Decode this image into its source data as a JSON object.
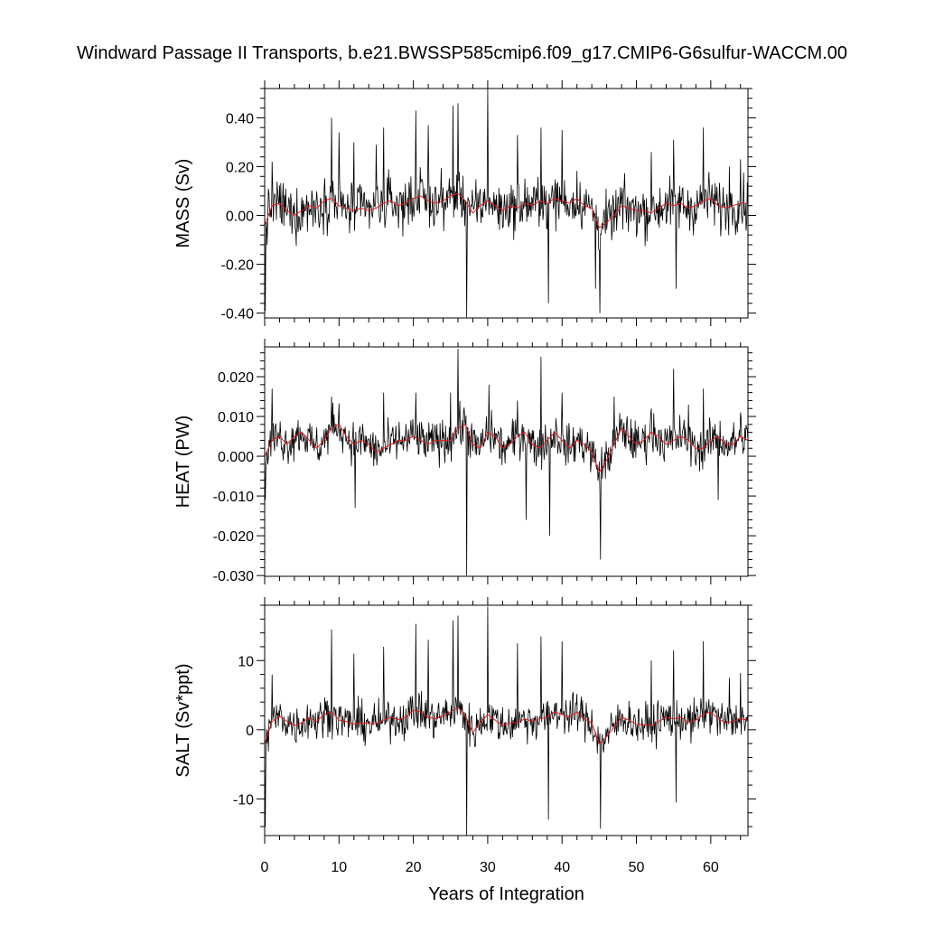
{
  "title": "Windward Passage II Transports, b.e21.BWSSP585cmip6.f09_g17.CMIP6-G6sulfur-WACCM.00",
  "xlabel": "Years of Integration",
  "colors": {
    "raw": "#000000",
    "smooth": "#e41a1c",
    "background": "#ffffff"
  },
  "chart_data": [
    {
      "type": "line",
      "ylabel": "MASS (Sv)",
      "ytick_labels": [
        "-0.40",
        "-0.20",
        "0.00",
        "0.20",
        "0.40"
      ],
      "ytick_values": [
        -0.4,
        -0.2,
        0.0,
        0.2,
        0.4
      ],
      "ylim": [
        -0.42,
        0.52
      ],
      "xlim": [
        0,
        65
      ],
      "amp": 0.075,
      "smooth": [
        [
          0,
          -0.04
        ],
        [
          1,
          0.04
        ],
        [
          2,
          0.05
        ],
        [
          3,
          0.02
        ],
        [
          4,
          0.0
        ],
        [
          5,
          0.02
        ],
        [
          6,
          0.04
        ],
        [
          7,
          0.03
        ],
        [
          8,
          0.06
        ],
        [
          9,
          0.07
        ],
        [
          10,
          0.04
        ],
        [
          11,
          0.03
        ],
        [
          12,
          0.02
        ],
        [
          13,
          0.03
        ],
        [
          14,
          0.02
        ],
        [
          15,
          0.03
        ],
        [
          16,
          0.05
        ],
        [
          17,
          0.06
        ],
        [
          18,
          0.04
        ],
        [
          19,
          0.05
        ],
        [
          20,
          0.07
        ],
        [
          21,
          0.08
        ],
        [
          22,
          0.06
        ],
        [
          23,
          0.05
        ],
        [
          24,
          0.06
        ],
        [
          25,
          0.08
        ],
        [
          26,
          0.09
        ],
        [
          27,
          0.06
        ],
        [
          28,
          0.01
        ],
        [
          29,
          0.04
        ],
        [
          30,
          0.06
        ],
        [
          31,
          0.04
        ],
        [
          32,
          0.02
        ],
        [
          33,
          0.04
        ],
        [
          34,
          0.03
        ],
        [
          35,
          0.05
        ],
        [
          36,
          0.04
        ],
        [
          37,
          0.06
        ],
        [
          38,
          0.05
        ],
        [
          39,
          0.07
        ],
        [
          40,
          0.06
        ],
        [
          41,
          0.05
        ],
        [
          42,
          0.07
        ],
        [
          43,
          0.04
        ],
        [
          44,
          0.03
        ],
        [
          45,
          -0.05
        ],
        [
          46,
          -0.03
        ],
        [
          47,
          0.0
        ],
        [
          48,
          0.04
        ],
        [
          49,
          0.03
        ],
        [
          50,
          0.02
        ],
        [
          51,
          0.02
        ],
        [
          52,
          0.01
        ],
        [
          53,
          0.03
        ],
        [
          54,
          0.05
        ],
        [
          55,
          0.04
        ],
        [
          56,
          0.05
        ],
        [
          57,
          0.03
        ],
        [
          58,
          0.04
        ],
        [
          59,
          0.06
        ],
        [
          60,
          0.07
        ],
        [
          61,
          0.04
        ],
        [
          62,
          0.03
        ],
        [
          63,
          0.04
        ],
        [
          64,
          0.05
        ],
        [
          65,
          0.05
        ]
      ],
      "spikes": [
        [
          0.05,
          -0.39
        ],
        [
          1.0,
          0.22
        ],
        [
          9.0,
          0.4
        ],
        [
          10.0,
          0.34
        ],
        [
          12.0,
          0.3
        ],
        [
          15.0,
          0.29
        ],
        [
          16.0,
          0.36
        ],
        [
          20.3,
          0.43
        ],
        [
          22.0,
          0.37
        ],
        [
          25.3,
          0.45
        ],
        [
          26.0,
          0.46
        ],
        [
          27.2,
          -0.42
        ],
        [
          30.0,
          0.52
        ],
        [
          34.0,
          0.33
        ],
        [
          37.2,
          0.36
        ],
        [
          38.2,
          -0.36
        ],
        [
          40.0,
          0.35
        ],
        [
          44.5,
          -0.3
        ],
        [
          45.1,
          -0.4
        ],
        [
          52.0,
          0.26
        ],
        [
          55.0,
          0.31
        ],
        [
          55.3,
          -0.3
        ],
        [
          59.0,
          0.36
        ],
        [
          62.5,
          0.2
        ],
        [
          64.0,
          0.23
        ]
      ]
    },
    {
      "type": "line",
      "ylabel": "HEAT (PW)",
      "ytick_labels": [
        "-0.030",
        "-0.020",
        "-0.010",
        "0.000",
        "0.010",
        "0.020"
      ],
      "ytick_values": [
        -0.03,
        -0.02,
        -0.01,
        0.0,
        0.01,
        0.02
      ],
      "ylim": [
        -0.0302,
        0.0275
      ],
      "xlim": [
        0,
        65
      ],
      "amp": 0.0038,
      "smooth": [
        [
          0,
          0.0
        ],
        [
          1,
          0.004
        ],
        [
          2,
          0.005
        ],
        [
          3,
          0.003
        ],
        [
          4,
          0.005
        ],
        [
          5,
          0.006
        ],
        [
          6,
          0.004
        ],
        [
          7,
          0.002
        ],
        [
          8,
          0.004
        ],
        [
          9,
          0.007
        ],
        [
          10,
          0.008
        ],
        [
          11,
          0.005
        ],
        [
          12,
          0.003
        ],
        [
          13,
          0.004
        ],
        [
          14,
          0.003
        ],
        [
          15,
          0.001
        ],
        [
          16,
          0.002
        ],
        [
          17,
          0.003
        ],
        [
          18,
          0.004
        ],
        [
          19,
          0.004
        ],
        [
          20,
          0.005
        ],
        [
          21,
          0.004
        ],
        [
          22,
          0.003
        ],
        [
          23,
          0.004
        ],
        [
          24,
          0.004
        ],
        [
          25,
          0.004
        ],
        [
          26,
          0.007
        ],
        [
          27,
          0.008
        ],
        [
          28,
          0.003
        ],
        [
          29,
          0.002
        ],
        [
          30,
          0.006
        ],
        [
          31,
          0.005
        ],
        [
          32,
          0.002
        ],
        [
          33,
          0.003
        ],
        [
          34,
          0.005
        ],
        [
          35,
          0.006
        ],
        [
          36,
          0.003
        ],
        [
          37,
          0.002
        ],
        [
          38,
          0.004
        ],
        [
          39,
          0.006
        ],
        [
          40,
          0.004
        ],
        [
          41,
          0.002
        ],
        [
          42,
          0.004
        ],
        [
          43,
          0.003
        ],
        [
          44,
          0.001
        ],
        [
          45,
          -0.004
        ],
        [
          46,
          -0.001
        ],
        [
          47,
          0.003
        ],
        [
          48,
          0.007
        ],
        [
          49,
          0.005
        ],
        [
          50,
          0.003
        ],
        [
          51,
          0.004
        ],
        [
          52,
          0.006
        ],
        [
          53,
          0.005
        ],
        [
          54,
          0.003
        ],
        [
          55,
          0.004
        ],
        [
          56,
          0.005
        ],
        [
          57,
          0.004
        ],
        [
          58,
          0.002
        ],
        [
          59,
          0.002
        ],
        [
          60,
          0.004
        ],
        [
          61,
          0.005
        ],
        [
          62,
          0.003
        ],
        [
          63,
          0.003
        ],
        [
          64,
          0.005
        ],
        [
          65,
          0.004
        ]
      ],
      "spikes": [
        [
          0.05,
          -0.011
        ],
        [
          1.0,
          0.017
        ],
        [
          9.0,
          0.015
        ],
        [
          12.2,
          -0.013
        ],
        [
          16.0,
          0.016
        ],
        [
          20.3,
          0.016
        ],
        [
          25.0,
          0.016
        ],
        [
          26.0,
          0.027
        ],
        [
          27.2,
          -0.03
        ],
        [
          30.2,
          0.018
        ],
        [
          34.0,
          0.014
        ],
        [
          35.2,
          -0.016
        ],
        [
          37.2,
          0.025
        ],
        [
          38.3,
          -0.02
        ],
        [
          40.0,
          0.016
        ],
        [
          45.2,
          -0.026
        ],
        [
          47.0,
          0.015
        ],
        [
          52.0,
          0.012
        ],
        [
          55.0,
          0.022
        ],
        [
          57.0,
          0.013
        ],
        [
          59.0,
          0.017
        ],
        [
          61.0,
          -0.011
        ],
        [
          64.0,
          0.011
        ]
      ]
    },
    {
      "type": "line",
      "ylabel": "SALT (Sv*ppt)",
      "ytick_labels": [
        "-10",
        "0",
        "10"
      ],
      "ytick_values": [
        -10,
        0,
        10
      ],
      "ylim": [
        -15.3,
        18.0
      ],
      "xlim": [
        0,
        65
      ],
      "amp": 2.1,
      "smooth": [
        [
          0,
          -2.0
        ],
        [
          1,
          1.2
        ],
        [
          2,
          2.0
        ],
        [
          3,
          1.2
        ],
        [
          4,
          0.6
        ],
        [
          5,
          1.0
        ],
        [
          6,
          1.8
        ],
        [
          7,
          1.2
        ],
        [
          8,
          2.2
        ],
        [
          9,
          2.6
        ],
        [
          10,
          1.4
        ],
        [
          11,
          1.2
        ],
        [
          12,
          0.8
        ],
        [
          13,
          1.0
        ],
        [
          14,
          0.9
        ],
        [
          15,
          0.9
        ],
        [
          16,
          1.4
        ],
        [
          17,
          1.8
        ],
        [
          18,
          1.5
        ],
        [
          19,
          1.8
        ],
        [
          20,
          2.8
        ],
        [
          21,
          2.6
        ],
        [
          22,
          1.8
        ],
        [
          23,
          1.6
        ],
        [
          24,
          2.0
        ],
        [
          25,
          2.6
        ],
        [
          26,
          3.2
        ],
        [
          27,
          2.0
        ],
        [
          28,
          -0.4
        ],
        [
          29,
          1.0
        ],
        [
          30,
          2.2
        ],
        [
          31,
          1.4
        ],
        [
          32,
          0.6
        ],
        [
          33,
          1.0
        ],
        [
          34,
          1.0
        ],
        [
          35,
          1.6
        ],
        [
          36,
          1.2
        ],
        [
          37,
          1.6
        ],
        [
          38,
          1.8
        ],
        [
          39,
          2.6
        ],
        [
          40,
          2.2
        ],
        [
          41,
          1.8
        ],
        [
          42,
          2.6
        ],
        [
          43,
          1.6
        ],
        [
          44,
          1.0
        ],
        [
          45,
          -2.0
        ],
        [
          46,
          -1.0
        ],
        [
          47,
          0.4
        ],
        [
          48,
          1.8
        ],
        [
          49,
          1.4
        ],
        [
          50,
          0.8
        ],
        [
          51,
          0.7
        ],
        [
          52,
          0.6
        ],
        [
          53,
          1.2
        ],
        [
          54,
          1.8
        ],
        [
          55,
          1.6
        ],
        [
          56,
          1.8
        ],
        [
          57,
          1.0
        ],
        [
          58,
          1.4
        ],
        [
          59,
          2.2
        ],
        [
          60,
          2.6
        ],
        [
          61,
          1.6
        ],
        [
          62,
          1.0
        ],
        [
          63,
          1.2
        ],
        [
          64,
          1.6
        ],
        [
          65,
          1.4
        ]
      ],
      "spikes": [
        [
          0.05,
          -14.0
        ],
        [
          1.0,
          8.0
        ],
        [
          9.0,
          14.5
        ],
        [
          12.0,
          11.0
        ],
        [
          16.0,
          12.0
        ],
        [
          20.3,
          15.3
        ],
        [
          22.0,
          13.0
        ],
        [
          25.3,
          15.8
        ],
        [
          26.0,
          16.5
        ],
        [
          27.2,
          -15.3
        ],
        [
          30.0,
          17.8
        ],
        [
          34.0,
          12.5
        ],
        [
          37.2,
          13.5
        ],
        [
          38.2,
          -13.0
        ],
        [
          40.0,
          12.8
        ],
        [
          45.2,
          -14.3
        ],
        [
          52.0,
          10.0
        ],
        [
          55.0,
          11.5
        ],
        [
          55.3,
          -10.5
        ],
        [
          59.0,
          12.8
        ],
        [
          62.5,
          7.5
        ],
        [
          64.0,
          8.2
        ]
      ]
    }
  ],
  "xtick_labels": [
    "0",
    "10",
    "20",
    "30",
    "40",
    "50",
    "60"
  ],
  "xtick_values": [
    0,
    10,
    20,
    30,
    40,
    50,
    60
  ]
}
